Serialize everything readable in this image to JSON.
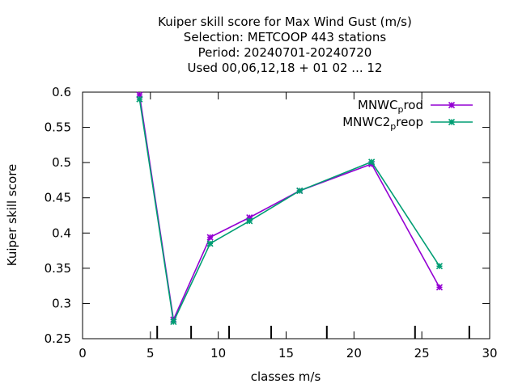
{
  "chart_data": {
    "type": "line",
    "title_lines": [
      "Kuiper skill score  for Max Wind Gust (m/s)",
      "Selection: METCOOP    443 stations",
      "Period: 20240701-20240720",
      "Used  00,06,12,18 + 01 02 ... 12"
    ],
    "xlabel": "classes m/s",
    "ylabel": "Kuiper skill score",
    "xlim": [
      0,
      30
    ],
    "ylim": [
      0.25,
      0.6
    ],
    "xticks": [
      0,
      5,
      10,
      15,
      20,
      25,
      30
    ],
    "xtick_labels": [
      "0",
      "5",
      "10",
      "15",
      "20",
      "25",
      "30"
    ],
    "yticks": [
      0.25,
      0.3,
      0.35,
      0.4,
      0.45,
      0.5,
      0.55,
      0.6
    ],
    "ytick_labels": [
      "0.25",
      "0.3",
      "0.35",
      "0.4",
      "0.45",
      "0.5",
      "0.55",
      "0.6"
    ],
    "class_limits": [
      5.5,
      8,
      10.8,
      13.9,
      18,
      24.5,
      28.5
    ],
    "legend_position": "top-right",
    "series": [
      {
        "name": "MNWC",
        "name_sub": "p",
        "name_rest": "rod",
        "color": "#9400d3",
        "x": [
          4.2,
          6.7,
          9.4,
          12.3,
          16.0,
          21.3,
          26.3
        ],
        "y": [
          0.596,
          0.277,
          0.394,
          0.422,
          0.46,
          0.498,
          0.323
        ]
      },
      {
        "name": "MNWC2",
        "name_sub": "p",
        "name_rest": "reop",
        "color": "#009e73",
        "x": [
          4.2,
          6.7,
          9.4,
          12.3,
          16.0,
          21.3,
          26.3
        ],
        "y": [
          0.59,
          0.274,
          0.385,
          0.417,
          0.46,
          0.501,
          0.353
        ]
      }
    ]
  }
}
